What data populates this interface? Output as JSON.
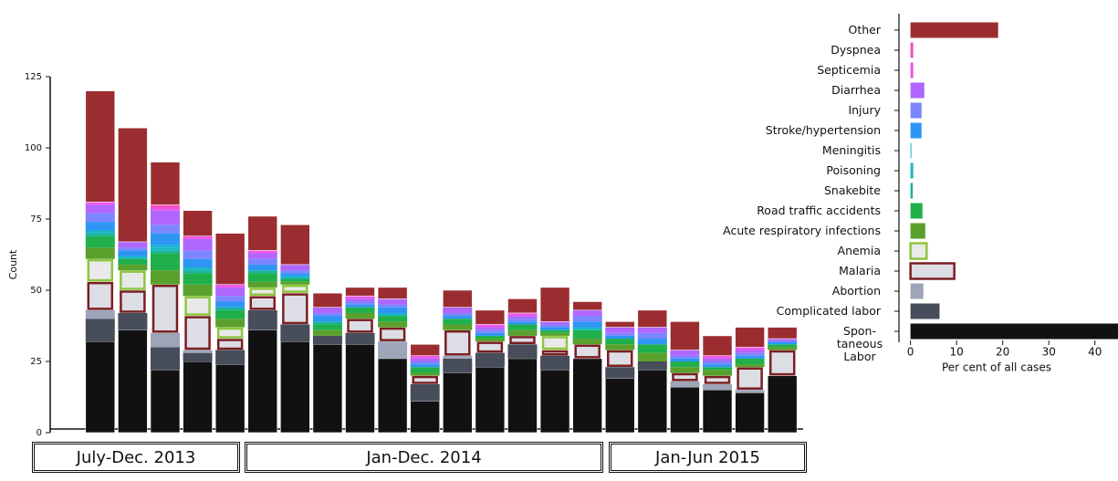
{
  "chart_data": [
    {
      "type": "stacked_bar",
      "ylabel": "Count",
      "categories": [
        null,
        null,
        null,
        null,
        null,
        null,
        null,
        null,
        null,
        null,
        null,
        null,
        null,
        null,
        null,
        null,
        null,
        null,
        null,
        null,
        null,
        null
      ],
      "groups": [
        "July-Dec. 2013",
        "Jan-Dec. 2014",
        "Jan-Jun 2015"
      ],
      "ylim": [
        0,
        125
      ],
      "yticks": [
        0,
        25,
        50,
        75,
        100,
        125
      ],
      "series": [
        {
          "name": "Spontaneous Labor",
          "color": "#111111",
          "values": [
            32,
            36,
            22,
            25,
            24,
            36,
            32,
            31,
            31,
            26,
            11,
            21,
            23,
            26,
            22,
            26,
            19,
            22,
            16,
            15,
            14,
            20
          ]
        },
        {
          "name": "Complicated labor",
          "color": "#474d5b",
          "values": [
            8,
            6,
            8,
            3,
            5,
            7,
            6,
            3,
            4,
            0,
            6,
            5,
            5,
            5,
            5,
            0,
            4,
            3,
            0,
            0,
            0,
            0
          ]
        },
        {
          "name": "Abortion",
          "color": "#9ea5b8",
          "values": [
            3,
            0,
            5,
            1,
            0,
            0,
            0,
            0,
            0,
            6,
            0,
            1,
            0,
            0,
            0,
            0,
            0,
            0,
            2,
            2,
            1,
            0
          ]
        },
        {
          "name": "Malaria",
          "color": "#dddde5",
          "edgecolor": "#7a1f22",
          "values": [
            10,
            8,
            17,
            12,
            4,
            5,
            11,
            0,
            5,
            5,
            3,
            9,
            4,
            3,
            2,
            5,
            6,
            0,
            3,
            3,
            8,
            9
          ]
        },
        {
          "name": "Anemia",
          "color": "#e9e9e9",
          "edgecolor": "#8cc63f",
          "values": [
            8,
            7,
            0,
            7,
            4,
            3,
            3,
            0,
            0,
            0,
            0,
            0,
            0,
            0,
            5,
            0,
            0,
            0,
            0,
            0,
            0,
            0
          ]
        },
        {
          "name": "Acute respiratory infections",
          "color": "#5aa02c",
          "values": [
            4,
            2,
            5,
            4,
            3,
            2,
            1,
            2,
            2,
            2,
            1,
            2,
            1,
            2,
            1,
            2,
            2,
            3,
            2,
            2,
            1,
            1
          ]
        },
        {
          "name": "Road traffic accidents",
          "color": "#1fb04c",
          "values": [
            4,
            2,
            6,
            4,
            3,
            3,
            1,
            2,
            2,
            2,
            2,
            2,
            1,
            2,
            1,
            3,
            2,
            3,
            2,
            1,
            2,
            1
          ]
        },
        {
          "name": "Snakebite",
          "color": "#17b39a",
          "values": [
            1,
            0,
            1,
            1,
            1,
            1,
            0,
            1,
            0,
            0,
            0,
            0,
            0,
            0,
            0,
            0,
            0,
            0,
            0,
            0,
            0,
            0
          ]
        },
        {
          "name": "Poisoning",
          "color": "#1ab6c4",
          "values": [
            1,
            1,
            1,
            1,
            0,
            0,
            1,
            0,
            0,
            1,
            0,
            0,
            0,
            0,
            0,
            1,
            0,
            0,
            0,
            0,
            0,
            0
          ]
        },
        {
          "name": "Meningitis",
          "color": "#19b3d9",
          "values": [
            0,
            0,
            1,
            0,
            0,
            0,
            0,
            0,
            0,
            0,
            0,
            0,
            0,
            0,
            0,
            0,
            0,
            0,
            0,
            0,
            0,
            0
          ]
        },
        {
          "name": "Stroke/hypertension",
          "color": "#2e95f5",
          "values": [
            3,
            2,
            4,
            3,
            2,
            2,
            1,
            2,
            1,
            2,
            1,
            1,
            1,
            1,
            1,
            2,
            1,
            2,
            1,
            1,
            1,
            1
          ]
        },
        {
          "name": "Injury",
          "color": "#7b86ff",
          "values": [
            3,
            1,
            3,
            3,
            2,
            2,
            1,
            1,
            1,
            1,
            1,
            1,
            1,
            1,
            1,
            2,
            1,
            2,
            1,
            1,
            1,
            0
          ]
        },
        {
          "name": "Diarrhea",
          "color": "#b066ff",
          "values": [
            3,
            2,
            5,
            4,
            3,
            2,
            2,
            2,
            1,
            2,
            1,
            2,
            1,
            1,
            1,
            2,
            2,
            2,
            2,
            1,
            1,
            1
          ]
        },
        {
          "name": "Septicemia",
          "color": "#ee55e8",
          "values": [
            1,
            0,
            1,
            1,
            1,
            1,
            0,
            0,
            1,
            0,
            1,
            0,
            1,
            1,
            0,
            0,
            0,
            0,
            0,
            1,
            1,
            0
          ]
        },
        {
          "name": "Dyspnea",
          "color": "#f24fc0",
          "values": [
            0,
            0,
            1,
            0,
            0,
            0,
            0,
            0,
            0,
            0,
            0,
            0,
            0,
            0,
            0,
            0,
            0,
            0,
            0,
            0,
            0,
            0
          ]
        },
        {
          "name": "Other",
          "color": "#9b2d30",
          "values": [
            39,
            40,
            15,
            9,
            18,
            12,
            14,
            5,
            3,
            4,
            4,
            6,
            5,
            5,
            12,
            3,
            2,
            6,
            10,
            7,
            7,
            4
          ]
        }
      ]
    },
    {
      "type": "hbar",
      "xlabel": "Per cent of all cases",
      "categories": [
        "Other",
        "Dyspnea",
        "Septicemia",
        "Diarrhea",
        "Injury",
        "Stroke/hypertension",
        "Meningitis",
        "Poisoning",
        "Snakebite",
        "Road traffic accidents",
        "Acute respiratory infections",
        "Anemia",
        "Malaria",
        "Abortion",
        "Complicated labor",
        "Spon-\ntaneous\nLabor"
      ],
      "values": [
        19,
        0.6,
        0.6,
        3,
        2.4,
        2.4,
        0.2,
        0.6,
        0.5,
        2.6,
        3.2,
        3.5,
        9.5,
        2.8,
        6.3,
        48
      ],
      "colors": [
        "#9b2d30",
        "#f24fc0",
        "#ee55e8",
        "#b066ff",
        "#7b86ff",
        "#2e95f5",
        "#19b3d9",
        "#1ab6c4",
        "#17b39a",
        "#1fb04c",
        "#5aa02c",
        "#e9e9e9",
        "#dddde5",
        "#9ea5b8",
        "#474d5b",
        "#111111"
      ],
      "edgecolors": [
        null,
        null,
        null,
        null,
        null,
        null,
        null,
        null,
        null,
        null,
        null,
        "#8cc63f",
        "#7a1f22",
        null,
        null,
        null
      ],
      "xlim": [
        -2.5,
        45
      ],
      "xticks": [
        0,
        10,
        20,
        30,
        40
      ]
    }
  ]
}
